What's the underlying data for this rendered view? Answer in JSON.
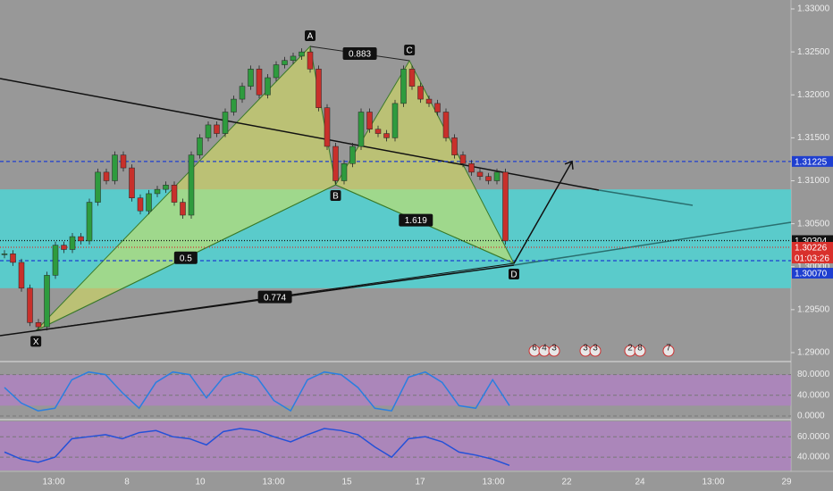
{
  "chart_data": {
    "type": "candlestick",
    "close": [
      1.3015,
      1.3005,
      1.2975,
      1.2935,
      1.293,
      1.299,
      1.3025,
      1.302,
      1.3035,
      1.303,
      1.3075,
      1.311,
      1.31,
      1.313,
      1.3115,
      1.308,
      1.3065,
      1.3085,
      1.309,
      1.3095,
      1.3075,
      1.306,
      1.313,
      1.315,
      1.3165,
      1.3155,
      1.318,
      1.3195,
      1.321,
      1.323,
      1.32,
      1.322,
      1.3235,
      1.324,
      1.3245,
      1.325,
      1.323,
      1.3185,
      1.314,
      1.31,
      1.312,
      1.314,
      1.318,
      1.316,
      1.3155,
      1.315,
      1.319,
      1.323,
      1.321,
      1.3195,
      1.319,
      1.318,
      1.315,
      1.313,
      1.312,
      1.311,
      1.3105,
      1.31,
      1.311,
      1.303
    ],
    "up_color": "#2e9b3e",
    "down_color": "#c8302b",
    "ylim": [
      1.28896,
      1.33104
    ],
    "yticks": [
      {
        "value": 1.29,
        "label": "1.29000"
      },
      {
        "value": 1.295,
        "label": "1.29500"
      },
      {
        "value": 1.3,
        "label": "1.30000"
      },
      {
        "value": 1.305,
        "label": "1.30500"
      },
      {
        "value": 1.31,
        "label": "1.31000"
      },
      {
        "value": 1.315,
        "label": "1.31500"
      },
      {
        "value": 1.32,
        "label": "1.32000"
      },
      {
        "value": 1.325,
        "label": "1.32500"
      },
      {
        "value": 1.33,
        "label": "1.33000"
      }
    ],
    "x_labels": [
      "13:00",
      "8",
      "10",
      "13:00",
      "15",
      "17",
      "13:00",
      "22",
      "24",
      "13:00",
      "29"
    ],
    "zone": [
      1.2975,
      1.309
    ],
    "zone_color": "#4fd3d3",
    "levels": [
      {
        "value": 1.31225,
        "label": "1.31225",
        "color": "#1f3fd0"
      },
      {
        "value": 1.30304,
        "label": "1.30304",
        "color": "#111111"
      },
      {
        "value": 1.30226,
        "label": "1.30226",
        "color": "#d9302c"
      },
      {
        "value": 1.3007,
        "label": "1.30070",
        "color": "#1f3fd0"
      }
    ],
    "countdown": "01:03:26",
    "pattern": {
      "points": [
        {
          "label": "X",
          "bar": 3.7,
          "price": 1.29256
        },
        {
          "label": "A",
          "bar": 36,
          "price": 1.32564
        },
        {
          "label": "B",
          "bar": 39,
          "price": 1.30953
        },
        {
          "label": "C",
          "bar": 47.7,
          "price": 1.32397
        },
        {
          "label": "D",
          "bar": 60,
          "price": 1.30039
        }
      ],
      "ratios": [
        "0.883",
        "0.5",
        "1.619",
        "0.774"
      ]
    },
    "events": [
      [
        "6",
        "4",
        "3"
      ],
      [
        "3",
        "3"
      ],
      [
        "2",
        "8"
      ],
      [
        "7"
      ]
    ],
    "indicators": [
      {
        "type": "line",
        "color": "#2a7fe0",
        "ylim": [
          0,
          100
        ],
        "band": [
          20,
          80
        ],
        "yticks": [
          {
            "value": 80,
            "label": "80.0000"
          },
          {
            "value": 40,
            "label": "40.0000"
          },
          {
            "value": 0,
            "label": "0.0000"
          }
        ],
        "values": [
          55,
          25,
          10,
          15,
          70,
          85,
          80,
          45,
          15,
          65,
          85,
          80,
          35,
          75,
          85,
          75,
          30,
          10,
          70,
          85,
          80,
          55,
          15,
          10,
          75,
          85,
          65,
          20,
          15,
          70,
          20
        ]
      },
      {
        "type": "line",
        "color": "#2451d8",
        "ylim": [
          27,
          75
        ],
        "band": [
          27,
          75
        ],
        "yticks": [
          {
            "value": 60,
            "label": "60.0000"
          },
          {
            "value": 40,
            "label": "40.0000"
          }
        ],
        "values": [
          45,
          38,
          35,
          40,
          58,
          60,
          62,
          58,
          64,
          66,
          60,
          58,
          52,
          65,
          68,
          66,
          60,
          55,
          62,
          68,
          66,
          62,
          50,
          40,
          58,
          60,
          55,
          45,
          42,
          38,
          32
        ]
      }
    ]
  }
}
